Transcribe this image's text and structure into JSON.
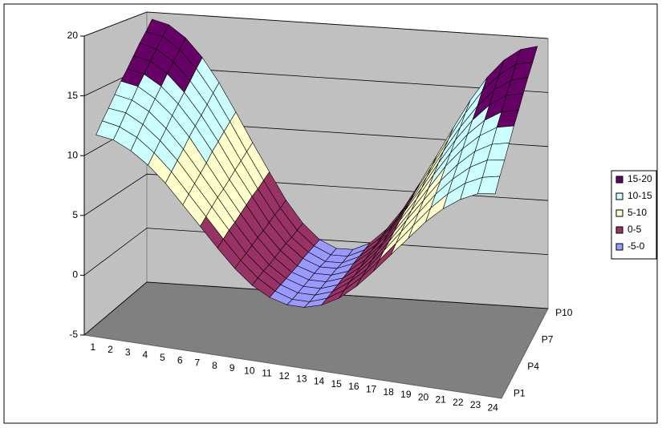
{
  "chart_data": {
    "type": "surface",
    "categories": [
      "1",
      "2",
      "3",
      "4",
      "5",
      "6",
      "7",
      "8",
      "9",
      "10",
      "11",
      "12",
      "13",
      "14",
      "15",
      "16",
      "17",
      "18",
      "19",
      "20",
      "21",
      "22",
      "23",
      "24"
    ],
    "series": [
      {
        "name": "P1",
        "values": [
          11.7,
          11.5,
          10.8,
          9.8,
          8.5,
          6.9,
          5.3,
          3.7,
          2.2,
          1.0,
          0.2,
          -0.2,
          -0.2,
          0.2,
          1.0,
          2.2,
          3.7,
          5.3,
          6.9,
          8.5,
          9.8,
          10.8,
          11.5,
          11.7
        ]
      },
      {
        "name": null,
        "values": [
          12.6,
          12.3,
          11.6,
          10.5,
          9.1,
          7.4,
          5.7,
          4.0,
          2.4,
          1.1,
          0.2,
          -0.3,
          -0.3,
          0.2,
          1.1,
          2.4,
          4.0,
          5.7,
          7.4,
          9.1,
          10.5,
          11.6,
          12.3,
          12.6
        ]
      },
      {
        "name": null,
        "values": [
          13.4,
          13.2,
          12.4,
          11.2,
          9.7,
          7.9,
          6.1,
          4.3,
          2.5,
          1.2,
          0.2,
          -0.3,
          -0.3,
          0.2,
          1.2,
          2.5,
          4.3,
          6.1,
          7.9,
          9.7,
          11.2,
          12.4,
          13.2,
          13.4
        ]
      },
      {
        "name": "P4",
        "values": [
          14.3,
          14.0,
          13.2,
          11.9,
          10.3,
          8.4,
          6.5,
          4.5,
          2.7,
          1.2,
          0.2,
          -0.3,
          -0.3,
          0.2,
          1.2,
          2.7,
          4.5,
          6.5,
          8.4,
          10.3,
          11.9,
          13.2,
          14.0,
          14.3
        ]
      },
      {
        "name": null,
        "values": [
          15.2,
          14.9,
          14.0,
          12.7,
          11.0,
          8.9,
          6.8,
          4.8,
          2.9,
          1.3,
          0.2,
          -0.3,
          -0.3,
          0.2,
          1.3,
          2.9,
          4.8,
          6.8,
          8.9,
          11.0,
          12.7,
          14.0,
          14.9,
          15.2
        ]
      },
      {
        "name": null,
        "values": [
          16.0,
          15.7,
          14.8,
          13.4,
          11.6,
          9.5,
          7.2,
          5.1,
          3.0,
          1.4,
          0.2,
          -0.3,
          -0.3,
          0.2,
          1.4,
          3.0,
          5.1,
          7.2,
          9.5,
          11.6,
          13.4,
          14.8,
          15.7,
          16.0
        ]
      },
      {
        "name": "P7",
        "values": [
          16.9,
          16.6,
          15.6,
          14.1,
          12.2,
          10.0,
          7.6,
          5.4,
          3.2,
          1.5,
          0.3,
          -0.3,
          -0.3,
          0.3,
          1.5,
          3.2,
          5.4,
          7.6,
          10.0,
          12.2,
          14.1,
          15.6,
          16.6,
          16.9
        ]
      },
      {
        "name": null,
        "values": [
          17.8,
          17.4,
          16.4,
          14.8,
          12.8,
          10.5,
          8.0,
          5.6,
          3.4,
          1.5,
          0.3,
          -0.4,
          -0.4,
          0.3,
          1.5,
          3.4,
          5.6,
          8.0,
          10.5,
          12.8,
          14.8,
          16.4,
          17.4,
          17.8
        ]
      },
      {
        "name": null,
        "values": [
          18.6,
          18.3,
          17.2,
          15.6,
          13.5,
          11.0,
          8.4,
          5.9,
          3.5,
          1.6,
          0.3,
          -0.4,
          -0.4,
          0.3,
          1.6,
          3.5,
          5.9,
          8.4,
          11.0,
          13.5,
          15.6,
          17.2,
          18.3,
          18.6
        ]
      },
      {
        "name": "P10",
        "values": [
          19.5,
          19.1,
          18.0,
          16.3,
          14.1,
          11.5,
          8.8,
          6.2,
          3.7,
          1.7,
          0.3,
          -0.4,
          -0.4,
          0.3,
          1.7,
          3.7,
          6.2,
          8.8,
          11.5,
          14.1,
          16.3,
          18.0,
          19.1,
          19.5
        ]
      }
    ],
    "ylim": [
      -5,
      20
    ],
    "yticks": [
      -5,
      0,
      5,
      10,
      15,
      20
    ],
    "grid": true,
    "legend_position": "right",
    "bands": [
      {
        "label": "15-20",
        "min": 15,
        "max": 20,
        "color": "#660066"
      },
      {
        "label": "10-15",
        "min": 10,
        "max": 15,
        "color": "#ccffff"
      },
      {
        "label": "5-10",
        "min": 5,
        "max": 10,
        "color": "#ffffcc"
      },
      {
        "label": "0-5",
        "min": 0,
        "max": 5,
        "color": "#993366"
      },
      {
        "label": "-5-0",
        "min": -5,
        "max": 0,
        "color": "#9999ff"
      }
    ]
  }
}
